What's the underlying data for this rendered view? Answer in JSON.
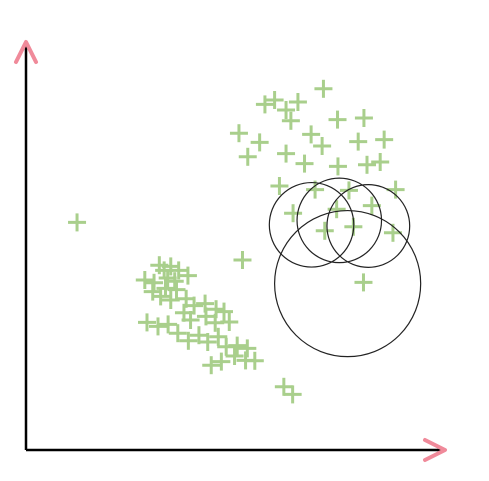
{
  "colors": {
    "background": "#ffffff",
    "axis": "#000000",
    "arrowhead": "#f08a9a",
    "marker": "#a9cf8c",
    "circle": "#222222"
  },
  "chart_data": {
    "type": "scatter",
    "title": "",
    "xlabel": "",
    "ylabel": "",
    "xlim": [
      0,
      100
    ],
    "ylim": [
      0,
      100
    ],
    "grid": false,
    "legend": "none",
    "marker": "plus",
    "series": [
      {
        "points": [
          {
            "x": 11.6,
            "y": 56.9
          },
          {
            "x": 31.4,
            "y": 44.9
          },
          {
            "x": 30.3,
            "y": 46.2
          },
          {
            "x": 32.9,
            "y": 45.9
          },
          {
            "x": 34.7,
            "y": 44.9
          },
          {
            "x": 36.8,
            "y": 43.6
          },
          {
            "x": 32.2,
            "y": 43.0
          },
          {
            "x": 33.8,
            "y": 42.2
          },
          {
            "x": 27.0,
            "y": 42.5
          },
          {
            "x": 29.1,
            "y": 41.8
          },
          {
            "x": 31.7,
            "y": 40.4
          },
          {
            "x": 34.2,
            "y": 40.1
          },
          {
            "x": 28.8,
            "y": 39.6
          },
          {
            "x": 30.6,
            "y": 38.4
          },
          {
            "x": 32.9,
            "y": 37.5
          },
          {
            "x": 36.4,
            "y": 37.8
          },
          {
            "x": 38.2,
            "y": 36.1
          },
          {
            "x": 40.7,
            "y": 36.6
          },
          {
            "x": 43.2,
            "y": 35.2
          },
          {
            "x": 45.0,
            "y": 34.6
          },
          {
            "x": 35.9,
            "y": 34.3
          },
          {
            "x": 37.4,
            "y": 32.5
          },
          {
            "x": 40.9,
            "y": 33.4
          },
          {
            "x": 43.0,
            "y": 31.8
          },
          {
            "x": 46.2,
            "y": 32.0
          },
          {
            "x": 27.5,
            "y": 31.9
          },
          {
            "x": 30.0,
            "y": 30.9
          },
          {
            "x": 32.3,
            "y": 31.4
          },
          {
            "x": 34.5,
            "y": 29.2
          },
          {
            "x": 36.9,
            "y": 27.3
          },
          {
            "x": 39.3,
            "y": 28.7
          },
          {
            "x": 41.3,
            "y": 27.0
          },
          {
            "x": 43.7,
            "y": 28.3
          },
          {
            "x": 45.5,
            "y": 25.8
          },
          {
            "x": 48.0,
            "y": 26.1
          },
          {
            "x": 50.3,
            "y": 25.4
          },
          {
            "x": 47.4,
            "y": 23.5
          },
          {
            "x": 49.9,
            "y": 22.4
          },
          {
            "x": 52.0,
            "y": 22.3
          },
          {
            "x": 44.4,
            "y": 22.1
          },
          {
            "x": 42.1,
            "y": 21.2
          },
          {
            "x": 49.2,
            "y": 47.5
          },
          {
            "x": 54.3,
            "y": 86.4
          },
          {
            "x": 56.5,
            "y": 87.5
          },
          {
            "x": 59.1,
            "y": 85.0
          },
          {
            "x": 61.8,
            "y": 87.0
          },
          {
            "x": 67.6,
            "y": 90.3
          },
          {
            "x": 60.2,
            "y": 82.3
          },
          {
            "x": 48.4,
            "y": 79.2
          },
          {
            "x": 53.1,
            "y": 76.9
          },
          {
            "x": 64.8,
            "y": 78.9
          },
          {
            "x": 67.3,
            "y": 76.0
          },
          {
            "x": 70.8,
            "y": 82.6
          },
          {
            "x": 76.8,
            "y": 83.0
          },
          {
            "x": 75.5,
            "y": 77.1
          },
          {
            "x": 81.4,
            "y": 77.6
          },
          {
            "x": 50.4,
            "y": 73.3
          },
          {
            "x": 59.1,
            "y": 74.1
          },
          {
            "x": 63.3,
            "y": 71.6
          },
          {
            "x": 70.9,
            "y": 70.9
          },
          {
            "x": 77.5,
            "y": 71.3
          },
          {
            "x": 80.5,
            "y": 72.0
          },
          {
            "x": 57.6,
            "y": 66.0
          },
          {
            "x": 65.7,
            "y": 65.1
          },
          {
            "x": 73.4,
            "y": 64.9
          },
          {
            "x": 84.0,
            "y": 65.1
          },
          {
            "x": 60.7,
            "y": 59.2
          },
          {
            "x": 70.6,
            "y": 60.2
          },
          {
            "x": 78.6,
            "y": 61.1
          },
          {
            "x": 67.9,
            "y": 54.8
          },
          {
            "x": 74.4,
            "y": 55.8
          },
          {
            "x": 83.4,
            "y": 54.3
          },
          {
            "x": 76.7,
            "y": 41.9
          },
          {
            "x": 58.6,
            "y": 15.8
          },
          {
            "x": 60.6,
            "y": 13.9
          }
        ]
      }
    ],
    "circles": [
      {
        "cx": 64.9,
        "cy": 56.3,
        "r": 9.6
      },
      {
        "cx": 71.2,
        "cy": 57.4,
        "r": 9.6
      },
      {
        "cx": 77.8,
        "cy": 56.0,
        "r": 9.4
      },
      {
        "cx": 73.1,
        "cy": 41.6,
        "r": 16.6
      }
    ]
  }
}
